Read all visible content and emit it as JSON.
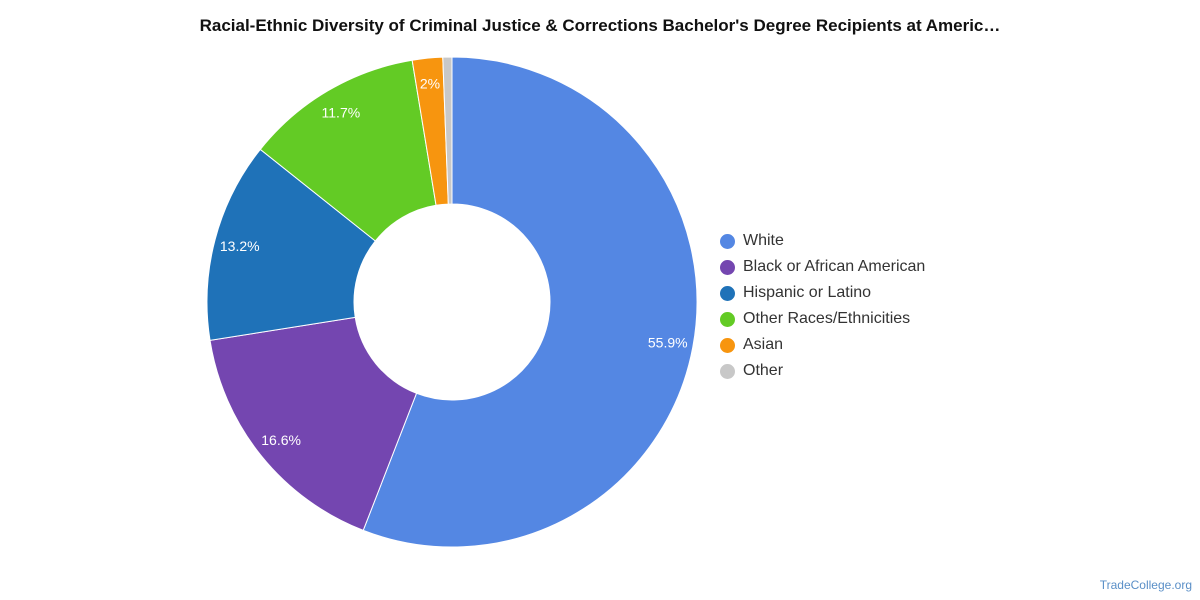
{
  "chart_data": {
    "type": "pie",
    "title": "Racial-Ethnic Diversity of Criminal Justice & Corrections Bachelor's Degree Recipients at Americ…",
    "donut": true,
    "legend_position": "right",
    "slices": [
      {
        "name": "White",
        "value": 55.9,
        "label": "55.9%",
        "color": "#5487e3"
      },
      {
        "name": "Black or African American",
        "value": 16.6,
        "label": "16.6%",
        "color": "#7446b0"
      },
      {
        "name": "Hispanic or Latino",
        "value": 13.2,
        "label": "13.2%",
        "color": "#1f72b8"
      },
      {
        "name": "Other Races/Ethnicities",
        "value": 11.7,
        "label": "11.7%",
        "color": "#63cb25"
      },
      {
        "name": "Asian",
        "value": 2.0,
        "label": "2%",
        "color": "#f7950f"
      },
      {
        "name": "Other",
        "value": 0.6,
        "label": "",
        "color": "#c8c8c8"
      }
    ]
  },
  "footer": {
    "credit": "TradeCollege.org"
  }
}
